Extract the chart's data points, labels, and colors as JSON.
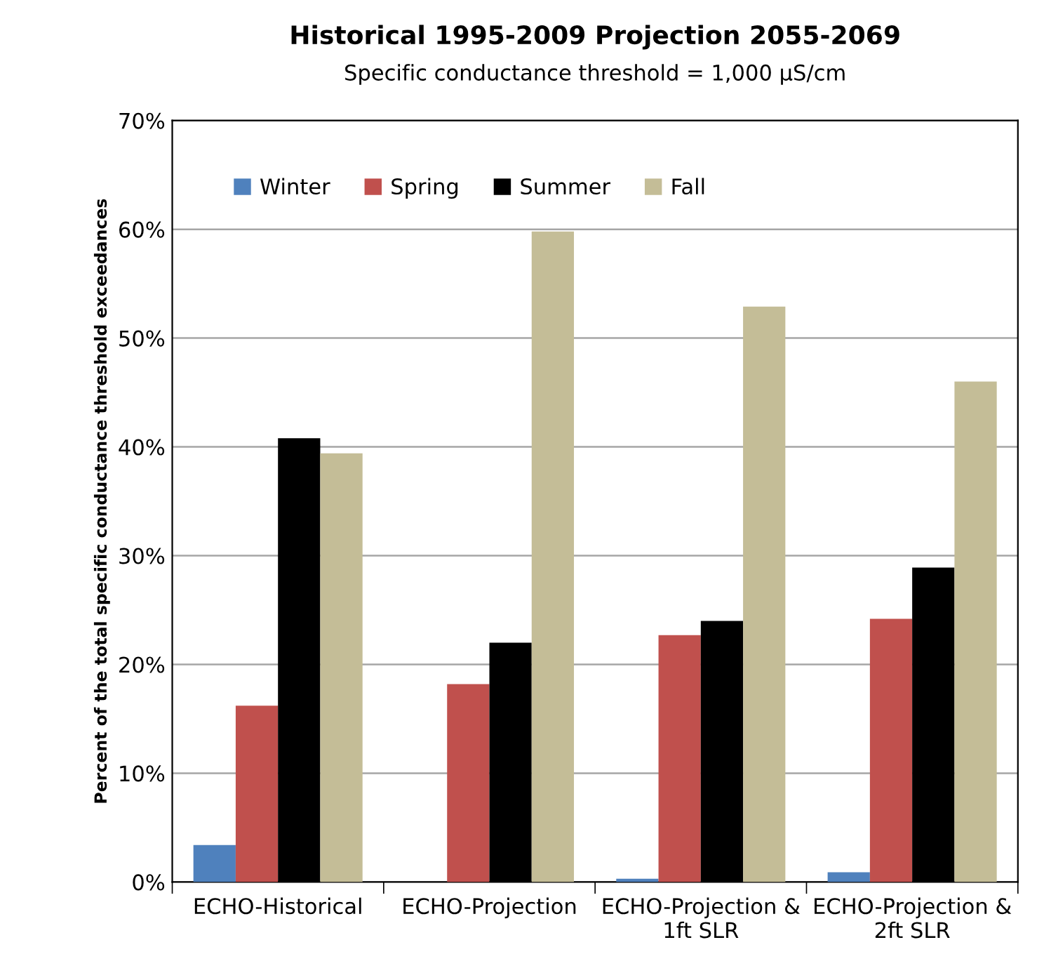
{
  "chart_data": {
    "type": "bar",
    "title": "Historical 1995-2009 Projection 2055-2069",
    "subtitle": "Specific conductance threshold = 1,000 µS/cm",
    "ylabel": "Percent of the total specific conductance threshold exceedances",
    "categories": [
      "ECHO-Historical",
      "ECHO-Projection",
      "ECHO-Projection &\n1ft SLR",
      "ECHO-Projection &\n2ft SLR"
    ],
    "series": [
      {
        "name": "Winter",
        "color": "#4f81bd",
        "values": [
          3.4,
          0,
          0.3,
          0.9
        ]
      },
      {
        "name": "Spring",
        "color": "#c0504d",
        "values": [
          16.2,
          18.2,
          22.7,
          24.2
        ]
      },
      {
        "name": "Summer",
        "color": "#000000",
        "values": [
          40.8,
          22.0,
          24.0,
          28.9
        ]
      },
      {
        "name": "Fall",
        "color": "#c4bd97",
        "values": [
          39.4,
          59.8,
          52.9,
          46.0
        ]
      }
    ],
    "ylim": [
      0,
      70
    ],
    "yticks": [
      {
        "value": 0,
        "label": "0%"
      },
      {
        "value": 10,
        "label": "10%"
      },
      {
        "value": 20,
        "label": "20%"
      },
      {
        "value": 30,
        "label": "30%"
      },
      {
        "value": 40,
        "label": "40%"
      },
      {
        "value": 50,
        "label": "50%"
      },
      {
        "value": 60,
        "label": "60%"
      },
      {
        "value": 70,
        "label": "70%"
      }
    ],
    "grid": "y",
    "legend": "top left"
  }
}
